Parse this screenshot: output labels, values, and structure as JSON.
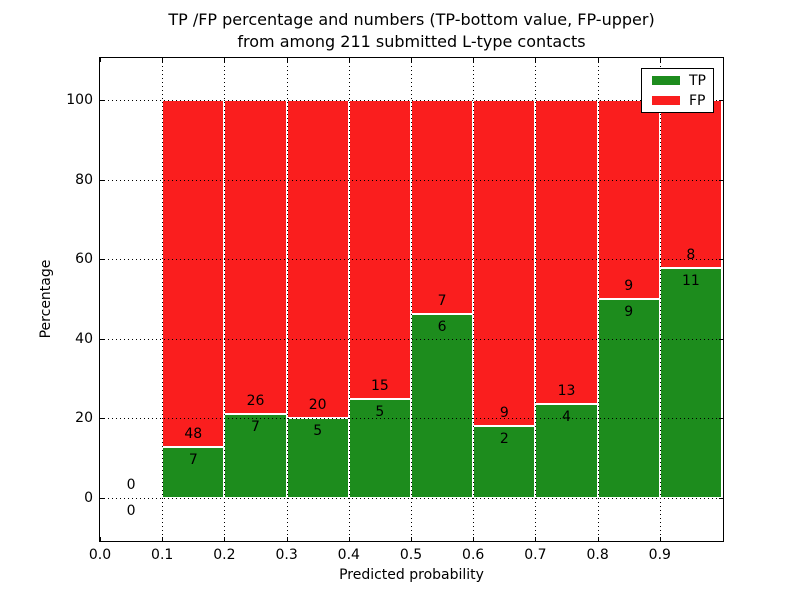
{
  "title": {
    "line1": "TP /FP percentage and numbers (TP-bottom value, FP-upper)",
    "line2": "from among 211 submitted L-type contacts"
  },
  "legend": {
    "items": [
      {
        "label": "TP",
        "color": "#1d8c1d"
      },
      {
        "label": "FP",
        "color": "#fa1e1e"
      }
    ],
    "position": "upper right"
  },
  "colors": {
    "tp": "#1d8c1d",
    "fp": "#fa1e1e",
    "background": "#ffffff",
    "grid": "#000000",
    "bar_edge": "#ffffff",
    "text": "#000000"
  },
  "chart_data": {
    "type": "bar",
    "stacked": true,
    "normalized_to_percent": 100,
    "title": "TP /FP percentage and numbers (TP-bottom value, FP-upper) from among 211 submitted L-type contacts",
    "xlabel": "Predicted probability",
    "ylabel": "Percentage",
    "total_submitted": 211,
    "bin_edges": [
      0.0,
      0.1,
      0.2,
      0.3,
      0.4,
      0.5,
      0.6,
      0.7,
      0.8,
      0.9,
      1.0
    ],
    "categories": [
      "0.0-0.1",
      "0.1-0.2",
      "0.2-0.3",
      "0.3-0.4",
      "0.4-0.5",
      "0.5-0.6",
      "0.6-0.7",
      "0.7-0.8",
      "0.8-0.9",
      "0.9-1.0"
    ],
    "series": [
      {
        "name": "TP",
        "color": "#1d8c1d",
        "counts": [
          0,
          7,
          7,
          5,
          5,
          6,
          2,
          4,
          9,
          11
        ]
      },
      {
        "name": "FP",
        "color": "#fa1e1e",
        "counts": [
          0,
          48,
          26,
          20,
          15,
          7,
          9,
          13,
          9,
          8
        ]
      }
    ],
    "tp_percent_of_bin": [
      null,
      12.7,
      21.2,
      20.0,
      25.0,
      46.2,
      18.2,
      23.5,
      50.0,
      57.9
    ],
    "xticks": [
      "0.0",
      "0.1",
      "0.2",
      "0.3",
      "0.4",
      "0.5",
      "0.6",
      "0.7",
      "0.8",
      "0.9"
    ],
    "yticks": [
      0,
      20,
      40,
      60,
      80,
      100
    ],
    "xlim": [
      0.0,
      1.0
    ],
    "ylim": [
      -10.5,
      110.5
    ],
    "grid": "dotted",
    "legend_position": "upper right"
  }
}
